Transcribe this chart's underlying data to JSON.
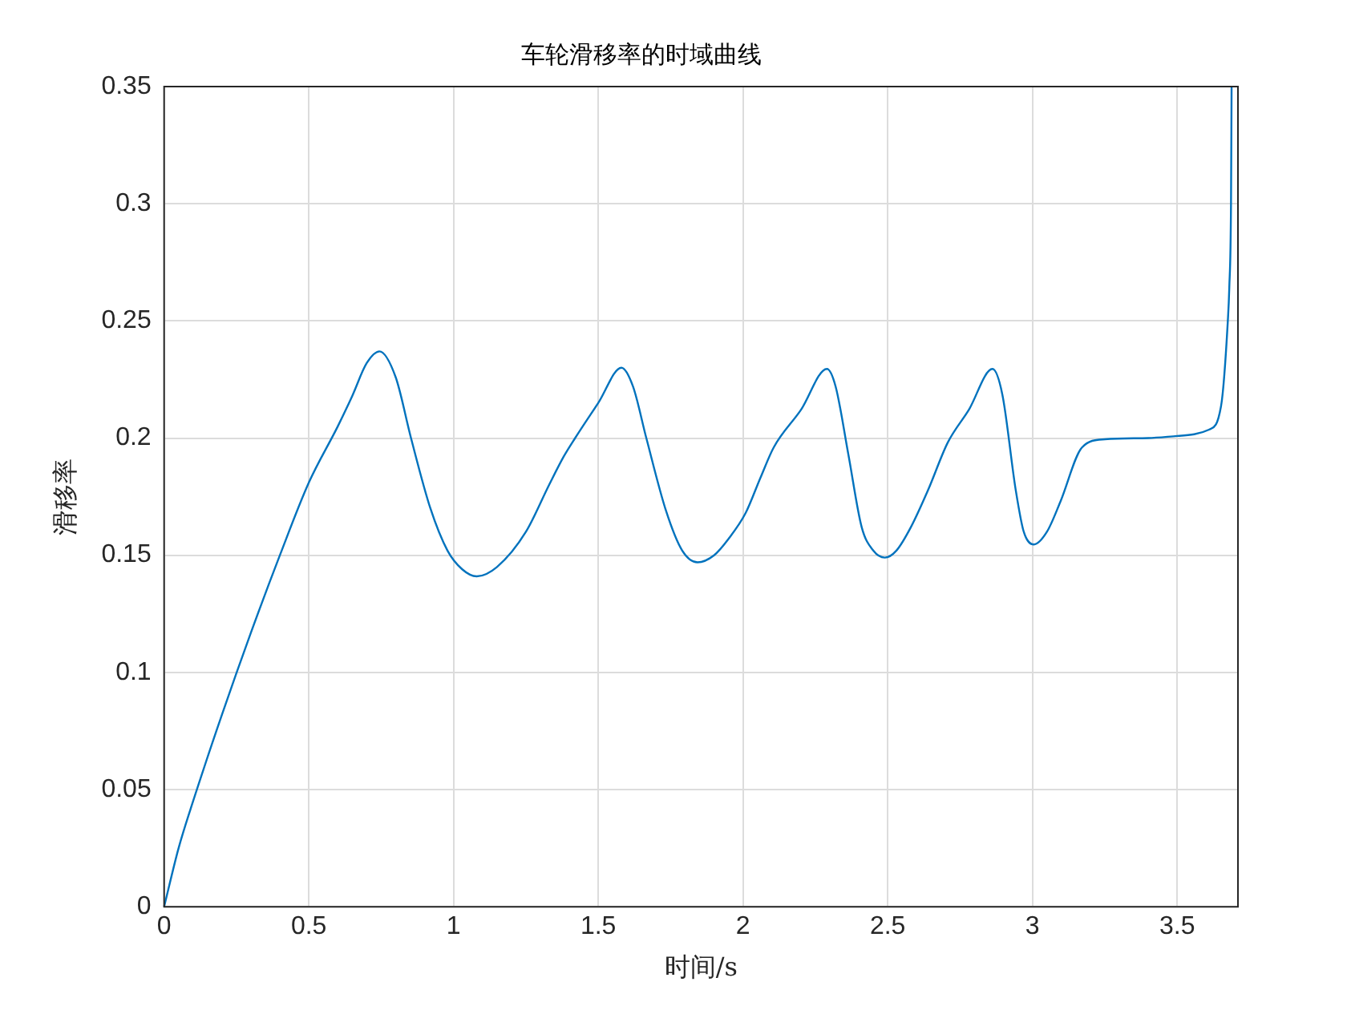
{
  "chart_data": {
    "type": "line",
    "title": "车轮滑移率的时域曲线",
    "xlabel": "时间/s",
    "ylabel": "滑移率",
    "x": [
      0,
      0.05,
      0.1,
      0.2,
      0.3,
      0.4,
      0.5,
      0.6,
      0.65,
      0.7,
      0.744,
      0.8,
      0.853,
      0.92,
      0.979,
      1.03,
      1.08,
      1.15,
      1.25,
      1.33,
      1.38,
      1.42,
      1.5,
      1.58,
      1.62,
      1.666,
      1.734,
      1.79,
      1.843,
      1.9,
      1.95,
      2.009,
      2.06,
      2.106,
      2.2,
      2.29,
      2.32,
      2.364,
      2.41,
      2.45,
      2.49,
      2.53,
      2.58,
      2.64,
      2.707,
      2.78,
      2.862,
      2.896,
      2.942,
      2.97,
      3.005,
      3.05,
      3.097,
      3.171,
      3.25,
      3.4,
      3.5,
      3.61,
      3.652,
      3.675,
      3.68,
      3.686,
      3.688
    ],
    "series": [
      {
        "color": "#0072bd",
        "values": [
          0,
          0.025,
          0.045,
          0.082,
          0.117,
          0.15,
          0.181,
          0.205,
          0.218,
          0.232,
          0.237,
          0.226,
          0.2,
          0.17,
          0.152,
          0.144,
          0.141,
          0.145,
          0.16,
          0.18,
          0.192,
          0.2,
          0.215,
          0.23,
          0.222,
          0.2,
          0.169,
          0.152,
          0.147,
          0.15,
          0.157,
          0.168,
          0.183,
          0.196,
          0.212,
          0.2295,
          0.222,
          0.193,
          0.162,
          0.152,
          0.149,
          0.152,
          0.162,
          0.178,
          0.198,
          0.212,
          0.2295,
          0.2186,
          0.178,
          0.16,
          0.1546,
          0.16,
          0.173,
          0.196,
          0.1995,
          0.2,
          0.2009,
          0.2036,
          0.214,
          0.25,
          0.264,
          0.3,
          0.35
        ]
      }
    ],
    "xlim": [
      0,
      3.71
    ],
    "xticks": [
      0,
      0.5,
      1,
      1.5,
      2,
      2.5,
      3,
      3.5
    ],
    "ylim": [
      0,
      0.35
    ],
    "yticks": [
      0,
      0.05,
      0.1,
      0.15,
      0.2,
      0.25,
      0.3,
      0.35
    ],
    "grid": true,
    "legend": false,
    "marker": "none",
    "line_style": "solid"
  }
}
